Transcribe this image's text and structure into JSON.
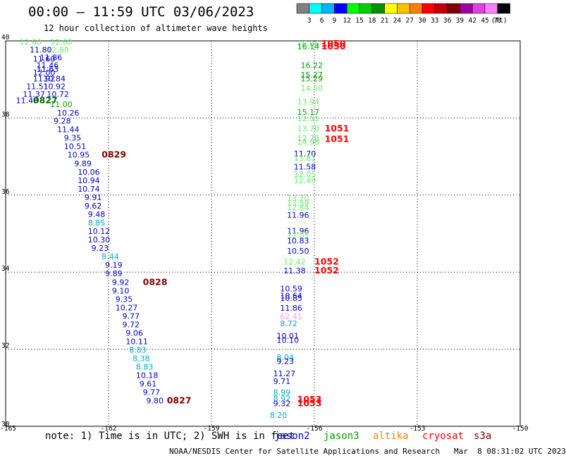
{
  "header": {
    "title": "00:00 – 11:59 UTC 03/06/2023",
    "subtitle": "12 hour collection of altimeter wave heights"
  },
  "legend_bar": {
    "colors": [
      "#808080",
      "#00ffff",
      "#00b4ff",
      "#0000ff",
      "#00ff00",
      "#00d000",
      "#009000",
      "#ffff00",
      "#ffc000",
      "#ff8000",
      "#ff0000",
      "#c00000",
      "#800000",
      "#a000a0",
      "#e040e0",
      "#ff80ff",
      "#000000"
    ],
    "ticks": [
      "3",
      "6",
      "9",
      "12",
      "15",
      "18",
      "21",
      "24",
      "27",
      "30",
      "33",
      "36",
      "39",
      "42",
      "45",
      "70"
    ],
    "unit": "(ft)"
  },
  "footer": {
    "note": "note: 1) Time is in UTC; 2) SWH is in feet",
    "satellites": [
      {
        "name": "jason2",
        "color": "#0000ff"
      },
      {
        "name": "jason3",
        "color": "#00a000"
      },
      {
        "name": "altika",
        "color": "#ff8000"
      },
      {
        "name": "cryosat",
        "color": "#ff0000"
      },
      {
        "name": "s3a",
        "color": "#800000"
      }
    ],
    "credit": "NOAA/NESDIS Center for Satellite Applications and Research   Mar  8 08:31:02 UTC 2023"
  },
  "chart_data": {
    "type": "scatter",
    "xlim": [
      -165,
      -150
    ],
    "ylim": [
      30,
      40
    ],
    "x_ticks": [
      "-165",
      "-162",
      "-159",
      "-156",
      "-153",
      "-150"
    ],
    "y_ticks": [
      "30",
      "32",
      "34",
      "36",
      "38",
      "40"
    ],
    "grid": true,
    "labels": [
      {
        "lon": -164.6,
        "lat": 39.9,
        "text": "12.60",
        "color": "#66ee66"
      },
      {
        "lon": -163.7,
        "lat": 39.9,
        "text": "12.60",
        "color": "#66ee66"
      },
      {
        "lon": -163.8,
        "lat": 39.7,
        "text": "12.89",
        "color": "#66ee66"
      },
      {
        "lon": -164.3,
        "lat": 39.7,
        "text": "11.80",
        "color": "#0000cc"
      },
      {
        "lon": -164.0,
        "lat": 39.5,
        "text": "11.86",
        "color": "#0000cc"
      },
      {
        "lon": -164.2,
        "lat": 39.46,
        "text": "11.60",
        "color": "#0000cc"
      },
      {
        "lon": -164.1,
        "lat": 39.3,
        "text": "11.46",
        "color": "#0000cc"
      },
      {
        "lon": -164.1,
        "lat": 39.2,
        "text": "11.63",
        "color": "#0000cc"
      },
      {
        "lon": -164.2,
        "lat": 39.1,
        "text": "12.00",
        "color": "#0000cc"
      },
      {
        "lon": -164.2,
        "lat": 38.95,
        "text": "11.92",
        "color": "#0000cc"
      },
      {
        "lon": -163.9,
        "lat": 38.95,
        "text": "10.84",
        "color": "#0000cc"
      },
      {
        "lon": -164.4,
        "lat": 38.75,
        "text": "11.51",
        "color": "#0000cc"
      },
      {
        "lon": -163.9,
        "lat": 38.75,
        "text": "10.92",
        "color": "#0000cc"
      },
      {
        "lon": -164.5,
        "lat": 38.55,
        "text": "11.37",
        "color": "#0000cc"
      },
      {
        "lon": -163.8,
        "lat": 38.55,
        "text": "10.72",
        "color": "#0000cc"
      },
      {
        "lon": -164.7,
        "lat": 38.38,
        "text": "11.48",
        "color": "#0000cc"
      },
      {
        "lon": -164.2,
        "lat": 38.38,
        "text": "0827",
        "color": "#006400"
      },
      {
        "lon": -163.7,
        "lat": 38.28,
        "text": "11.00",
        "color": "#00a000"
      },
      {
        "lon": -163.5,
        "lat": 38.06,
        "text": "10.26",
        "color": "#0000cc"
      },
      {
        "lon": -163.6,
        "lat": 37.85,
        "text": "9.28",
        "color": "#0000cc"
      },
      {
        "lon": -163.5,
        "lat": 37.63,
        "text": "11.44",
        "color": "#0000cc"
      },
      {
        "lon": -163.3,
        "lat": 37.41,
        "text": "9.35",
        "color": "#0000cc"
      },
      {
        "lon": -163.3,
        "lat": 37.19,
        "text": "10.51",
        "color": "#0000cc"
      },
      {
        "lon": -163.2,
        "lat": 36.97,
        "text": "10.95",
        "color": "#0000cc"
      },
      {
        "lon": -162.2,
        "lat": 36.97,
        "text": "0829",
        "color": "#800000"
      },
      {
        "lon": -163.0,
        "lat": 36.75,
        "text": "9.89",
        "color": "#0000cc"
      },
      {
        "lon": -162.9,
        "lat": 36.53,
        "text": "10.06",
        "color": "#0000cc"
      },
      {
        "lon": -162.9,
        "lat": 36.31,
        "text": "10.94",
        "color": "#0000cc"
      },
      {
        "lon": -162.9,
        "lat": 36.09,
        "text": "10.74",
        "color": "#0000cc"
      },
      {
        "lon": -162.7,
        "lat": 35.87,
        "text": "9.91",
        "color": "#0000cc"
      },
      {
        "lon": -162.7,
        "lat": 35.65,
        "text": "9.62",
        "color": "#0000cc"
      },
      {
        "lon": -162.6,
        "lat": 35.43,
        "text": "9.48",
        "color": "#0000cc"
      },
      {
        "lon": -162.6,
        "lat": 35.21,
        "text": "8.85",
        "color": "#00aacc"
      },
      {
        "lon": -162.6,
        "lat": 34.99,
        "text": "10.12",
        "color": "#0000cc"
      },
      {
        "lon": -162.6,
        "lat": 34.77,
        "text": "10.30",
        "color": "#0000cc"
      },
      {
        "lon": -162.5,
        "lat": 34.55,
        "text": "9.23",
        "color": "#0000cc"
      },
      {
        "lon": -162.2,
        "lat": 34.33,
        "text": "8.44",
        "color": "#00aacc"
      },
      {
        "lon": -162.1,
        "lat": 34.11,
        "text": "9.19",
        "color": "#0000cc"
      },
      {
        "lon": -162.1,
        "lat": 33.89,
        "text": "9.89",
        "color": "#0000cc"
      },
      {
        "lon": -161.9,
        "lat": 33.67,
        "text": "9.92",
        "color": "#0000cc"
      },
      {
        "lon": -161.0,
        "lat": 33.67,
        "text": "0828",
        "color": "#800000"
      },
      {
        "lon": -161.9,
        "lat": 33.45,
        "text": "9.10",
        "color": "#0000cc"
      },
      {
        "lon": -161.8,
        "lat": 33.23,
        "text": "9.35",
        "color": "#0000cc"
      },
      {
        "lon": -161.8,
        "lat": 33.01,
        "text": "10.27",
        "color": "#0000cc"
      },
      {
        "lon": -161.6,
        "lat": 32.79,
        "text": "9.77",
        "color": "#0000cc"
      },
      {
        "lon": -161.6,
        "lat": 32.57,
        "text": "9.72",
        "color": "#0000cc"
      },
      {
        "lon": -161.5,
        "lat": 32.35,
        "text": "9.06",
        "color": "#0000cc"
      },
      {
        "lon": -161.5,
        "lat": 32.13,
        "text": "10.11",
        "color": "#0000cc"
      },
      {
        "lon": -161.4,
        "lat": 31.91,
        "text": "8.83",
        "color": "#00aacc"
      },
      {
        "lon": -161.3,
        "lat": 31.69,
        "text": "8.38",
        "color": "#00aacc"
      },
      {
        "lon": -161.2,
        "lat": 31.47,
        "text": "8.83",
        "color": "#00aacc"
      },
      {
        "lon": -161.2,
        "lat": 31.25,
        "text": "10.18",
        "color": "#0000cc"
      },
      {
        "lon": -161.1,
        "lat": 31.03,
        "text": "9.61",
        "color": "#0000cc"
      },
      {
        "lon": -161.0,
        "lat": 30.81,
        "text": "9.77",
        "color": "#0000cc"
      },
      {
        "lon": -160.9,
        "lat": 30.59,
        "text": "9.80",
        "color": "#0000cc"
      },
      {
        "lon": -160.3,
        "lat": 30.59,
        "text": "0827",
        "color": "#800000"
      },
      {
        "lon": -156.5,
        "lat": 39.85,
        "text": "16.06",
        "color": "#66ee66"
      },
      {
        "lon": -156.5,
        "lat": 39.78,
        "text": "16.14",
        "color": "#00a000"
      },
      {
        "lon": -155.8,
        "lat": 39.85,
        "text": "1050",
        "color": "#ff0000"
      },
      {
        "lon": -155.8,
        "lat": 39.78,
        "text": "1050",
        "color": "#ff0000"
      },
      {
        "lon": -156.4,
        "lat": 39.3,
        "text": "16.22",
        "color": "#00a000"
      },
      {
        "lon": -156.4,
        "lat": 39.05,
        "text": "15.27",
        "color": "#00a000"
      },
      {
        "lon": -156.4,
        "lat": 38.95,
        "text": "15.29",
        "color": "#00a000"
      },
      {
        "lon": -156.4,
        "lat": 38.7,
        "text": "14.50",
        "color": "#66ee66"
      },
      {
        "lon": -156.5,
        "lat": 38.35,
        "text": "13.94",
        "color": "#66ee66"
      },
      {
        "lon": -156.5,
        "lat": 38.08,
        "text": "15.17",
        "color": "#00a000"
      },
      {
        "lon": -156.5,
        "lat": 37.92,
        "text": "12.51",
        "color": "#66ee66"
      },
      {
        "lon": -156.5,
        "lat": 37.65,
        "text": "13.70",
        "color": "#66ee66"
      },
      {
        "lon": -155.7,
        "lat": 37.65,
        "text": "1051",
        "color": "#ff0000"
      },
      {
        "lon": -156.5,
        "lat": 37.4,
        "text": "12.78",
        "color": "#66ee66"
      },
      {
        "lon": -156.5,
        "lat": 37.3,
        "text": "14.98",
        "color": "#66ee66"
      },
      {
        "lon": -155.7,
        "lat": 37.38,
        "text": "1051",
        "color": "#ff0000"
      },
      {
        "lon": -156.6,
        "lat": 37.0,
        "text": "11.70",
        "color": "#0000cc"
      },
      {
        "lon": -156.6,
        "lat": 36.88,
        "text": "13.81",
        "color": "#66ee66"
      },
      {
        "lon": -156.6,
        "lat": 36.66,
        "text": "11.58",
        "color": "#0000cc"
      },
      {
        "lon": -156.6,
        "lat": 36.47,
        "text": "12.05",
        "color": "#66ee66"
      },
      {
        "lon": -156.6,
        "lat": 36.31,
        "text": "12.49",
        "color": "#66ee66"
      },
      {
        "lon": -156.8,
        "lat": 35.85,
        "text": "13.70",
        "color": "#66ee66"
      },
      {
        "lon": -156.8,
        "lat": 35.72,
        "text": "13.59",
        "color": "#66ee66"
      },
      {
        "lon": -156.8,
        "lat": 35.6,
        "text": "12.84",
        "color": "#66ee66"
      },
      {
        "lon": -156.8,
        "lat": 35.41,
        "text": "11.96",
        "color": "#0000cc"
      },
      {
        "lon": -156.8,
        "lat": 35.0,
        "text": "11.96",
        "color": "#0000cc"
      },
      {
        "lon": -156.8,
        "lat": 34.88,
        "text": "12.05",
        "color": "#66ee66"
      },
      {
        "lon": -156.8,
        "lat": 34.74,
        "text": "10.83",
        "color": "#0000cc"
      },
      {
        "lon": -156.8,
        "lat": 34.48,
        "text": "10.50",
        "color": "#0000cc"
      },
      {
        "lon": -156.9,
        "lat": 34.2,
        "text": "12.42",
        "color": "#66ee66"
      },
      {
        "lon": -156.0,
        "lat": 34.2,
        "text": "1052",
        "color": "#ff0000"
      },
      {
        "lon": -156.9,
        "lat": 33.97,
        "text": "11.38",
        "color": "#0000cc"
      },
      {
        "lon": -156.0,
        "lat": 33.97,
        "text": "1052",
        "color": "#ff0000"
      },
      {
        "lon": -157.0,
        "lat": 33.5,
        "text": "10.59",
        "color": "#0000cc"
      },
      {
        "lon": -157.0,
        "lat": 33.32,
        "text": "10.64",
        "color": "#0000cc"
      },
      {
        "lon": -157.0,
        "lat": 33.25,
        "text": "10.85",
        "color": "#0000cc"
      },
      {
        "lon": -157.0,
        "lat": 33.0,
        "text": "11.86",
        "color": "#0000cc"
      },
      {
        "lon": -157.0,
        "lat": 32.78,
        "text": "62.41",
        "color": "#ff99dd"
      },
      {
        "lon": -157.0,
        "lat": 32.6,
        "text": "8.72",
        "color": "#00aacc"
      },
      {
        "lon": -157.1,
        "lat": 32.28,
        "text": "10.01",
        "color": "#0000cc"
      },
      {
        "lon": -157.1,
        "lat": 32.17,
        "text": "10.10",
        "color": "#0000cc"
      },
      {
        "lon": -157.1,
        "lat": 31.72,
        "text": "8.04",
        "color": "#00aacc"
      },
      {
        "lon": -157.1,
        "lat": 31.62,
        "text": "9.23",
        "color": "#0000cc"
      },
      {
        "lon": -157.2,
        "lat": 31.3,
        "text": "11.27",
        "color": "#0000cc"
      },
      {
        "lon": -157.2,
        "lat": 31.1,
        "text": "9.71",
        "color": "#0000cc"
      },
      {
        "lon": -157.2,
        "lat": 30.8,
        "text": "8.99",
        "color": "#00aacc"
      },
      {
        "lon": -157.2,
        "lat": 30.65,
        "text": "8.92",
        "color": "#00aacc"
      },
      {
        "lon": -157.2,
        "lat": 30.52,
        "text": "9.32",
        "color": "#0000cc"
      },
      {
        "lon": -156.5,
        "lat": 30.62,
        "text": "1053",
        "color": "#ff0000"
      },
      {
        "lon": -156.5,
        "lat": 30.52,
        "text": "1053",
        "color": "#ff0000"
      },
      {
        "lon": -157.3,
        "lat": 30.22,
        "text": "8.20",
        "color": "#00aacc"
      }
    ]
  }
}
